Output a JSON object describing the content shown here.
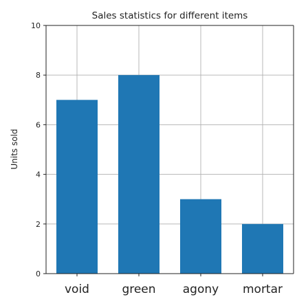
{
  "chart_data": {
    "type": "bar",
    "title": "Sales statistics for different items",
    "xlabel": "",
    "ylabel": "Units sold",
    "categories": [
      "void",
      "green",
      "agony",
      "mortar"
    ],
    "values": [
      7,
      8,
      3,
      2
    ],
    "ylim": [
      0,
      10
    ],
    "yticks": [
      0,
      2,
      4,
      6,
      8,
      10
    ],
    "grid": true,
    "bar_color": "#1f77b4"
  }
}
